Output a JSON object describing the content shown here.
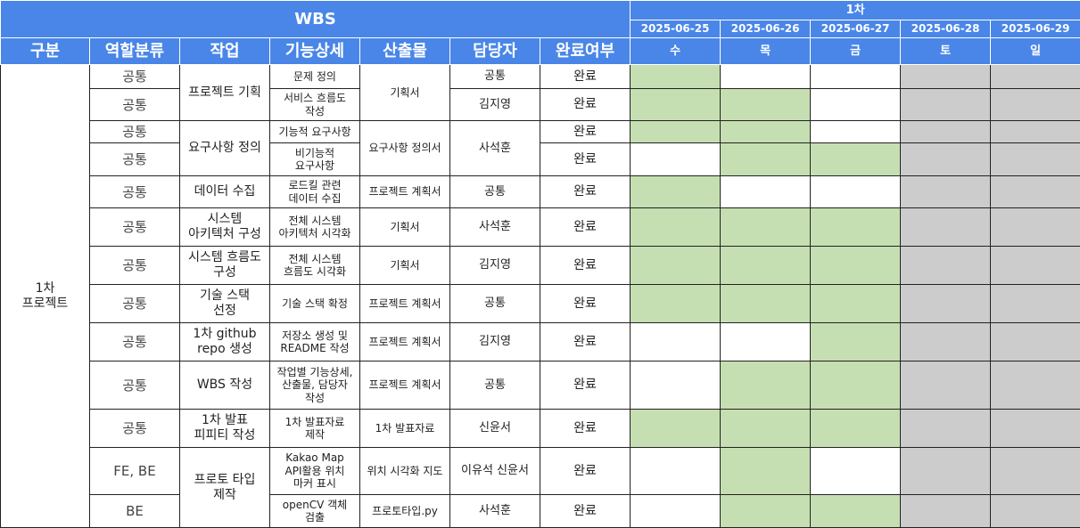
{
  "header": {
    "title": "WBS",
    "round": "1차",
    "columns": [
      "구분",
      "역할분류",
      "작업",
      "기능상세",
      "산출물",
      "담당자",
      "완료여부"
    ],
    "dates": [
      "2025-06-25",
      "2025-06-26",
      "2025-06-27",
      "2025-06-28",
      "2025-06-29"
    ],
    "days": [
      "수",
      "목",
      "금",
      "토",
      "일"
    ]
  },
  "colors": {
    "header_blue": "#4a86e8",
    "done_green": "#c6dfb2",
    "weekend_gray": "#cccccc",
    "empty_white": "#ffffff"
  },
  "phase": "1차\n프로젝트",
  "rows": [
    {
      "role": "공통",
      "task": "프로젝트 기획",
      "detail": "문제 정의",
      "deliverable": "기획서",
      "owner": "공통",
      "status": "완료",
      "schedule": [
        "on",
        "off",
        "off",
        "wknd",
        "wknd"
      ]
    },
    {
      "role": "공통",
      "detail": "서비스 흐름도\n작성",
      "owner": "김지영",
      "status": "완료",
      "schedule": [
        "on",
        "on",
        "off",
        "wknd",
        "wknd"
      ]
    },
    {
      "role": "공통",
      "task": "요구사항 정의",
      "detail": "기능적 요구사항",
      "deliverable": "요구사항 정의서",
      "owner": "사석훈",
      "status": "완료",
      "schedule": [
        "on",
        "on",
        "off",
        "wknd",
        "wknd"
      ]
    },
    {
      "role": "공통",
      "detail": "비기능적\n요구사항",
      "status": "완료",
      "schedule": [
        "off",
        "on",
        "on",
        "wknd",
        "wknd"
      ]
    },
    {
      "role": "공통",
      "task": "데이터 수집",
      "detail": "로드킬 관련\n데이터 수집",
      "deliverable": "프로젝트 계획서",
      "owner": "공통",
      "status": "완료",
      "schedule": [
        "on",
        "off",
        "off",
        "wknd",
        "wknd"
      ]
    },
    {
      "role": "공통",
      "task": "시스템\n아키텍처 구성",
      "detail": "전체 시스템\n아키텍처 시각화",
      "deliverable": "기획서",
      "owner": "사석훈",
      "status": "완료",
      "schedule": [
        "on",
        "on",
        "on",
        "wknd",
        "wknd"
      ]
    },
    {
      "role": "공통",
      "task": "시스템 흐름도\n구성",
      "detail": "전체 시스템\n흐름도 시각화",
      "deliverable": "기획서",
      "owner": "김지영",
      "status": "완료",
      "schedule": [
        "on",
        "on",
        "on",
        "wknd",
        "wknd"
      ]
    },
    {
      "role": "공통",
      "task": "기술 스택\n선정",
      "detail": "기술 스택 확정",
      "deliverable": "프로젝트 계획서",
      "owner": "공통",
      "status": "완료",
      "schedule": [
        "on",
        "on",
        "on",
        "wknd",
        "wknd"
      ]
    },
    {
      "role": "공통",
      "task": "1차 github\nrepo 생성",
      "detail": "저장소 생성 및\nREADME 작성",
      "deliverable": "프로젝트 계획서",
      "owner": "김지영",
      "status": "완료",
      "schedule": [
        "off",
        "off",
        "on",
        "wknd",
        "wknd"
      ]
    },
    {
      "role": "공통",
      "task": "WBS 작성",
      "detail": "작업별 기능상세,\n산출물, 담당자\n작성",
      "deliverable": "프로젝트 계획서",
      "owner": "공통",
      "status": "완료",
      "schedule": [
        "off",
        "on",
        "on",
        "wknd",
        "wknd"
      ]
    },
    {
      "role": "공통",
      "task": "1차 발표\n피피티 작성",
      "detail": "1차 발표자료\n제작",
      "deliverable": "1차 발표자료",
      "owner": "신윤서",
      "status": "완료",
      "schedule": [
        "on",
        "on",
        "on",
        "wknd",
        "wknd"
      ]
    },
    {
      "role": "FE, BE",
      "task": "프로토 타입\n제작",
      "detail": "Kakao Map\nAPI활용 위치\n마커 표시",
      "deliverable": "위치 시각화 지도",
      "owner": "이유석 신윤서",
      "status": "완료",
      "schedule": [
        "off",
        "on",
        "off",
        "wknd",
        "wknd"
      ]
    },
    {
      "role": "BE",
      "detail": "openCV 객체\n검출",
      "deliverable": "프로토타입.py",
      "owner": "사석훈",
      "status": "완료",
      "schedule": [
        "off",
        "on",
        "on",
        "wknd",
        "wknd"
      ]
    }
  ]
}
